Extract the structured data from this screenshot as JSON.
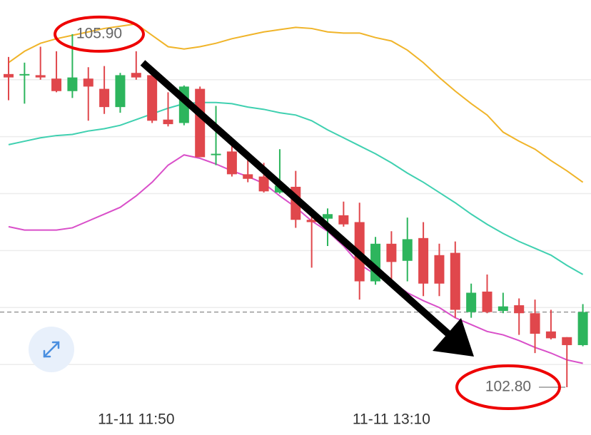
{
  "chart_data": {
    "type": "candlestick",
    "categories": [
      null,
      null,
      null,
      null,
      null,
      null,
      null,
      null,
      "11-11 11:50",
      null,
      null,
      null,
      null,
      null,
      null,
      null,
      null,
      null,
      null,
      null,
      null,
      null,
      null,
      null,
      "11-11 13:10",
      null,
      null,
      null,
      null,
      null,
      null,
      null,
      null,
      null,
      null,
      null,
      null
    ],
    "open": [
      105.55,
      105.54,
      105.54,
      105.51,
      105.4,
      105.51,
      105.42,
      105.26,
      105.56,
      105.54,
      105.15,
      105.12,
      105.42,
      104.84,
      104.87,
      104.67,
      104.65,
      104.51,
      104.56,
      104.27,
      104.28,
      104.31,
      104.25,
      103.73,
      104.06,
      103.91,
      104.11,
      103.96,
      103.98,
      103.46,
      103.64,
      103.47,
      103.52,
      103.45,
      103.29,
      103.24,
      103.17
    ],
    "high": [
      105.7,
      105.65,
      105.79,
      105.75,
      105.9,
      105.61,
      105.62,
      105.56,
      105.75,
      105.57,
      105.39,
      105.45,
      105.44,
      105.27,
      104.92,
      104.82,
      104.77,
      104.89,
      104.7,
      104.35,
      104.37,
      104.43,
      104.42,
      104.12,
      104.17,
      104.29,
      104.25,
      104.06,
      104.08,
      103.71,
      103.79,
      103.63,
      103.58,
      103.57,
      103.48,
      103.24,
      103.53
    ],
    "low": [
      105.32,
      105.29,
      105.5,
      105.39,
      105.34,
      105.14,
      105.2,
      105.21,
      105.5,
      105.12,
      105.09,
      105.1,
      104.82,
      104.75,
      104.65,
      104.6,
      104.51,
      104.5,
      104.2,
      103.85,
      104.04,
      104.21,
      103.57,
      103.7,
      103.73,
      103.73,
      103.6,
      103.6,
      103.41,
      103.41,
      103.45,
      103.45,
      103.26,
      103.1,
      103.22,
      102.8,
      103.16
    ],
    "close": [
      105.52,
      105.55,
      105.52,
      105.4,
      105.52,
      105.44,
      105.26,
      105.54,
      105.52,
      105.14,
      105.11,
      105.44,
      104.82,
      104.85,
      104.67,
      104.63,
      104.52,
      104.57,
      104.27,
      104.25,
      104.32,
      104.23,
      103.73,
      104.06,
      103.9,
      104.1,
      103.71,
      103.71,
      103.48,
      103.63,
      103.46,
      103.51,
      103.45,
      103.27,
      103.23,
      103.17,
      103.46
    ],
    "up_color": "#2db55d",
    "down_color": "#e0474c",
    "overlays": [
      {
        "color": "#f0b429",
        "values": [
          105.65,
          105.75,
          105.82,
          105.86,
          105.89,
          105.92,
          105.95,
          105.97,
          105.99,
          105.89,
          105.79,
          105.77,
          105.79,
          105.82,
          105.86,
          105.89,
          105.92,
          105.94,
          105.96,
          105.95,
          105.92,
          105.91,
          105.91,
          105.87,
          105.84,
          105.76,
          105.65,
          105.52,
          105.4,
          105.29,
          105.19,
          105.04,
          104.96,
          104.89,
          104.79,
          104.7,
          104.6
        ]
      },
      {
        "color": "#3fd0b0",
        "values": [
          104.93,
          104.96,
          104.99,
          105.01,
          105.02,
          105.05,
          105.07,
          105.1,
          105.15,
          105.2,
          105.25,
          105.29,
          105.3,
          105.3,
          105.29,
          105.26,
          105.24,
          105.21,
          105.19,
          105.14,
          105.06,
          104.99,
          104.92,
          104.85,
          104.77,
          104.68,
          104.6,
          104.51,
          104.42,
          104.32,
          104.23,
          104.15,
          104.08,
          104.02,
          103.96,
          103.87,
          103.79
        ]
      },
      {
        "color": "#d94fc9",
        "values": [
          104.21,
          104.18,
          104.18,
          104.18,
          104.2,
          104.26,
          104.32,
          104.38,
          104.48,
          104.6,
          104.75,
          104.84,
          104.81,
          104.76,
          104.7,
          104.65,
          104.59,
          104.48,
          104.38,
          104.26,
          104.17,
          104.04,
          103.88,
          103.79,
          103.73,
          103.63,
          103.56,
          103.5,
          103.41,
          103.35,
          103.29,
          103.26,
          103.21,
          103.15,
          103.1,
          103.04,
          103.01
        ]
      }
    ],
    "annotations": [
      {
        "value": 105.9,
        "label": "105.90"
      },
      {
        "value": 102.8,
        "label": "102.80"
      }
    ],
    "ylim": [
      102.6,
      106.2
    ],
    "yticks": [
      103,
      103.5,
      104,
      104.5,
      105,
      105.5
    ],
    "grid": true
  }
}
